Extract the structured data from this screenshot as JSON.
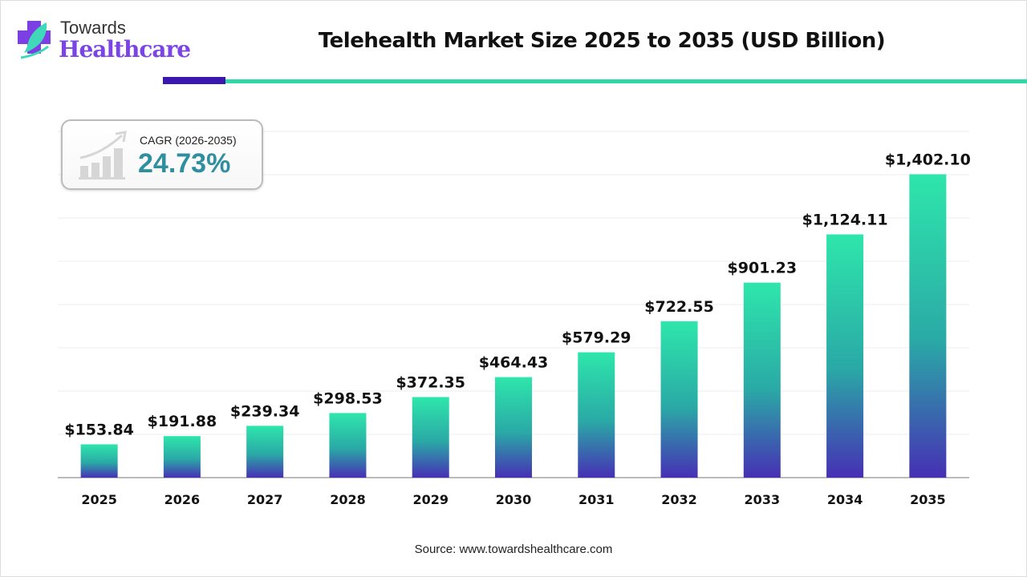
{
  "brand": {
    "line1": "Towards",
    "line2": "Healthcare"
  },
  "colors": {
    "bar_top": "#2ee6ab",
    "bar_bottom": "#4630b4",
    "accent_dark": "#3a18b0",
    "accent_teal": "#2ed9a6",
    "cagr": "#2e8fa0",
    "logo": "#7b45e6"
  },
  "cagr": {
    "label": "CAGR (2026-2035)",
    "value": "24.73%",
    "icon": "growth-chart-icon"
  },
  "source": "Source: www.towardshealthcare.com",
  "chart_data": {
    "type": "bar",
    "title": "Telehealth Market Size 2025 to 2035 (USD Billion)",
    "xlabel": "",
    "ylabel": "",
    "ylim": [
      0,
      1600
    ],
    "grid": true,
    "categories": [
      "2025",
      "2026",
      "2027",
      "2028",
      "2029",
      "2030",
      "2031",
      "2032",
      "2033",
      "2034",
      "2035"
    ],
    "values": [
      153.84,
      191.88,
      239.34,
      298.53,
      372.35,
      464.43,
      579.29,
      722.55,
      901.23,
      1124.11,
      1402.1
    ],
    "labels": [
      "$153.84",
      "$191.88",
      "$239.34",
      "$298.53",
      "$372.35",
      "$464.43",
      "$579.29",
      "$722.55",
      "$901.23",
      "$1,124.11",
      "$1,402.10"
    ]
  }
}
